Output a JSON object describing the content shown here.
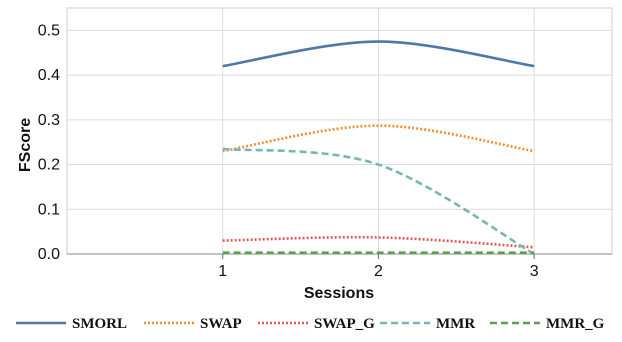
{
  "chart_data": {
    "type": "line",
    "x": [
      1,
      2,
      3
    ],
    "xlabel": "Sessions",
    "ylabel": "FScore",
    "xlim": [
      0.0,
      3.5
    ],
    "ylim": [
      0,
      0.55
    ],
    "xticks": [
      "1",
      "2",
      "3"
    ],
    "yticks": [
      "0.0",
      "0.1",
      "0.2",
      "0.3",
      "0.4",
      "0.5"
    ],
    "grid": true,
    "legend": "bottom",
    "series": [
      {
        "name": "SMORL",
        "values": [
          0.42,
          0.475,
          0.42
        ],
        "color": "#4e79a7",
        "dash": "solid"
      },
      {
        "name": "SWAP",
        "values": [
          0.23,
          0.287,
          0.23
        ],
        "color": "#f28e2b",
        "dash": "dotted"
      },
      {
        "name": "SWAP_G",
        "values": [
          0.03,
          0.037,
          0.015
        ],
        "color": "#e15759",
        "dash": "dotted"
      },
      {
        "name": "MMR",
        "values": [
          0.235,
          0.2,
          0.0
        ],
        "color": "#76b7b2",
        "dash": "dashed"
      },
      {
        "name": "MMR_G",
        "values": [
          0.003,
          0.003,
          0.003
        ],
        "color": "#59a14f",
        "dash": "dashed"
      }
    ]
  }
}
